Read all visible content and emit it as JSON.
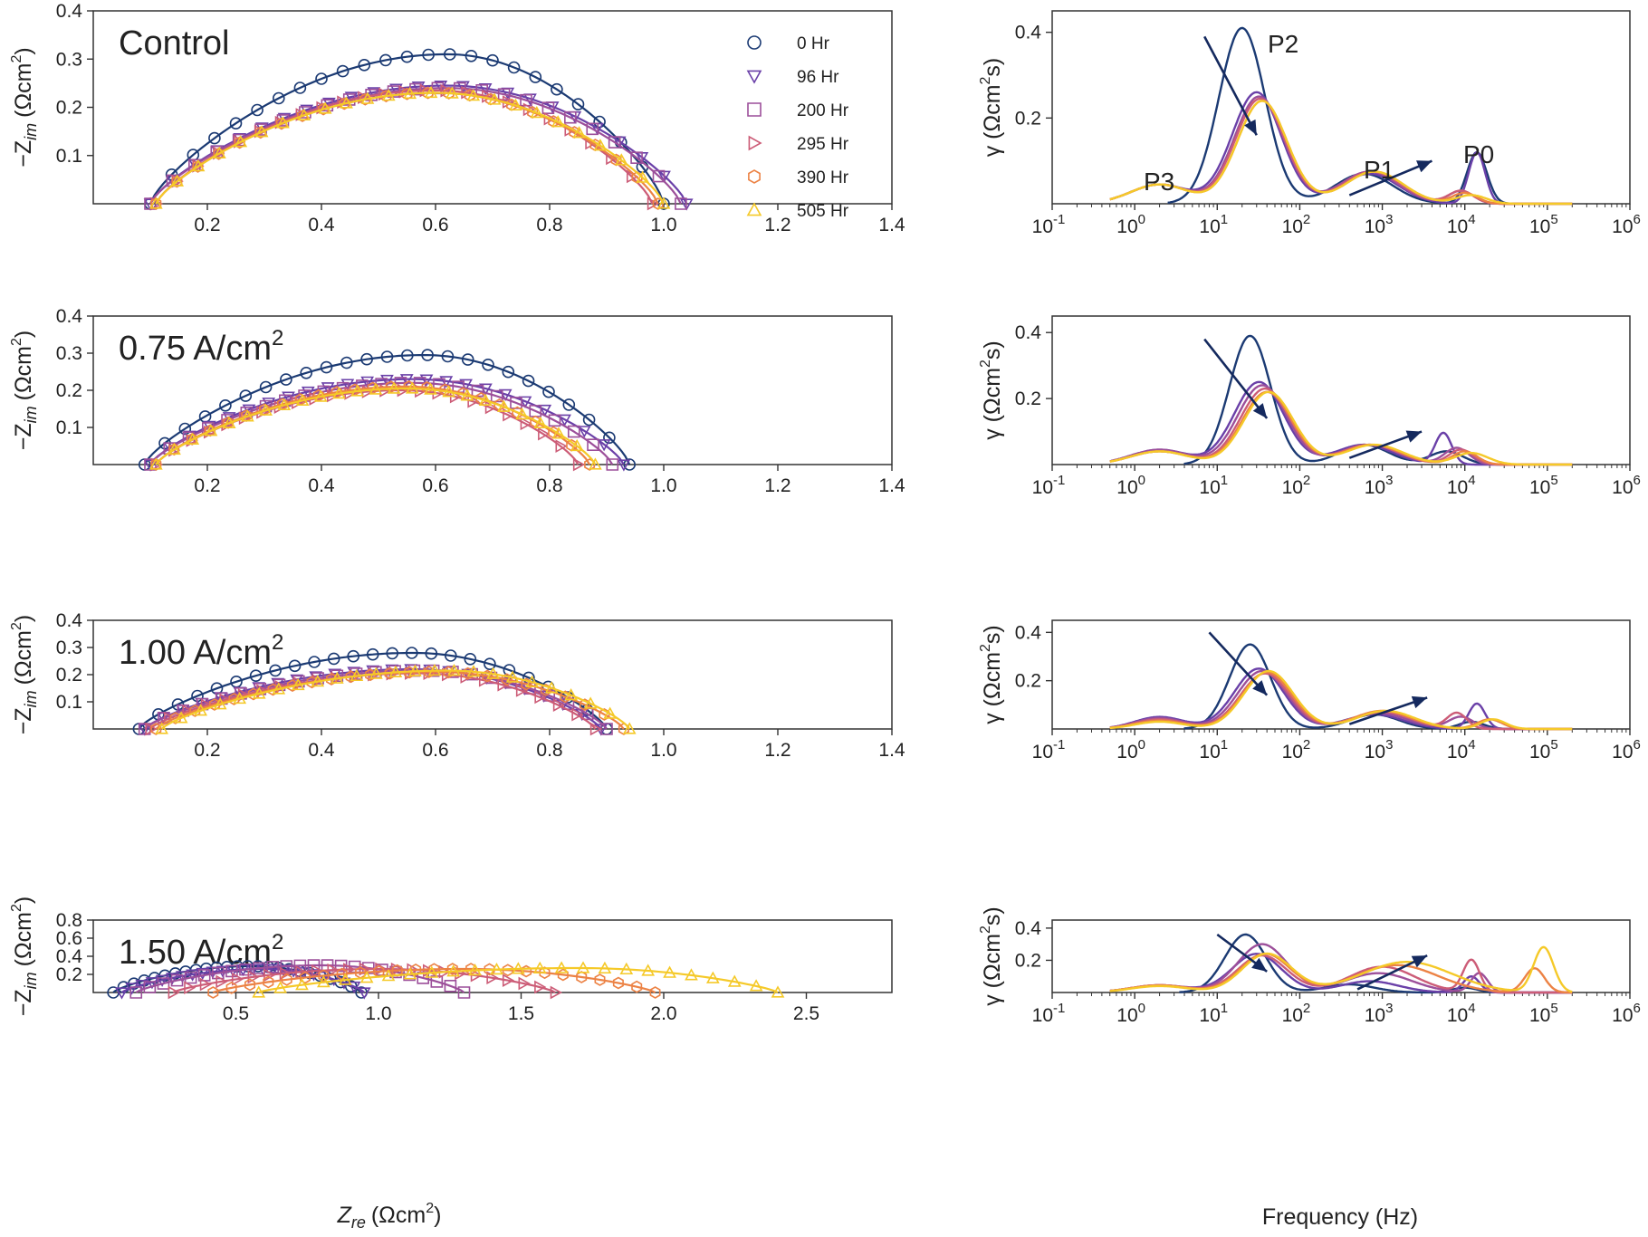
{
  "figure": {
    "legend": {
      "placement": "top-right of top-left panel",
      "entries": [
        {
          "label": "0 Hr",
          "marker": "circle",
          "color": "#1b3a73"
        },
        {
          "label": "96 Hr",
          "marker": "triangle-down",
          "color": "#6a40a8"
        },
        {
          "label": "200 Hr",
          "marker": "square",
          "color": "#9c4f9a"
        },
        {
          "label": "295 Hr",
          "marker": "triangle-right",
          "color": "#cc5c77"
        },
        {
          "label": "390 Hr",
          "marker": "hexagon",
          "color": "#ec8244"
        },
        {
          "label": "505 Hr",
          "marker": "triangle-up",
          "color": "#f5c928"
        }
      ]
    },
    "nyquist_axes": {
      "ylabel_main": "−Z",
      "ylabel_sub": "im",
      "ylabel_unit": "(Ωcm",
      "ylabel_exp": "2",
      "ylabel_close": ")",
      "xlabel_main": "Z",
      "xlabel_sub": "re",
      "xlabel_unit": "(Ωcm",
      "xlabel_exp": "2",
      "xlabel_close": ")"
    },
    "drt_axes": {
      "ylabel_main": "γ (Ωcm",
      "ylabel_exp": "2",
      "ylabel_close": "s)",
      "xlabel": "Frequency (Hz)"
    },
    "peak_labels": [
      "P3",
      "P2",
      "P1",
      "P0"
    ]
  },
  "chart_data": [
    {
      "type": "scatter",
      "panel": "nyquist",
      "label": "Control",
      "xlim": [
        0,
        1.4
      ],
      "ylim": [
        0,
        0.4
      ],
      "xticks": [
        0.2,
        0.4,
        0.6,
        0.8,
        1.0,
        1.2,
        1.4
      ],
      "yticks": [
        0.1,
        0.2,
        0.3,
        0.4
      ],
      "series": [
        {
          "name": "0 Hr",
          "x0": 0.1,
          "x1": 1.0,
          "peak": 0.31,
          "peak_at": 0.62
        },
        {
          "name": "96 Hr",
          "x0": 0.1,
          "x1": 1.04,
          "peak": 0.245,
          "peak_at": 0.62
        },
        {
          "name": "200 Hr",
          "x0": 0.1,
          "x1": 1.03,
          "peak": 0.24,
          "peak_at": 0.62
        },
        {
          "name": "295 Hr",
          "x0": 0.11,
          "x1": 0.98,
          "peak": 0.235,
          "peak_at": 0.6
        },
        {
          "name": "390 Hr",
          "x0": 0.11,
          "x1": 0.99,
          "peak": 0.23,
          "peak_at": 0.6
        },
        {
          "name": "505 Hr",
          "x0": 0.11,
          "x1": 1.0,
          "peak": 0.23,
          "peak_at": 0.6
        }
      ]
    },
    {
      "type": "line",
      "panel": "drt",
      "label": "Control",
      "xscale": "log",
      "xlim": [
        0.1,
        1000000
      ],
      "ylim": [
        0,
        0.45
      ],
      "yticks": [
        0.2,
        0.4
      ],
      "arrows": [
        {
          "x1": 7,
          "y1": 0.39,
          "x2": 30,
          "y2": 0.16
        },
        {
          "x1": 400,
          "y1": 0.02,
          "x2": 4000,
          "y2": 0.1
        }
      ],
      "series": [
        {
          "name": "0 Hr",
          "peaks": [
            [
              20,
              0.41,
              0.28
            ],
            [
              600,
              0.07,
              0.35
            ],
            [
              14000,
              0.12,
              0.12
            ]
          ]
        },
        {
          "name": "96 Hr",
          "peaks": [
            [
              2,
              0.045,
              0.35
            ],
            [
              30,
              0.26,
              0.3
            ],
            [
              700,
              0.07,
              0.35
            ],
            [
              14000,
              0.12,
              0.1
            ]
          ]
        },
        {
          "name": "200 Hr",
          "peaks": [
            [
              2,
              0.045,
              0.35
            ],
            [
              32,
              0.25,
              0.3
            ],
            [
              700,
              0.075,
              0.35
            ],
            [
              9000,
              0.03,
              0.15
            ]
          ]
        },
        {
          "name": "295 Hr",
          "peaks": [
            [
              2,
              0.045,
              0.35
            ],
            [
              33,
              0.245,
              0.3
            ],
            [
              750,
              0.075,
              0.35
            ],
            [
              9000,
              0.03,
              0.15
            ]
          ]
        },
        {
          "name": "390 Hr",
          "peaks": [
            [
              2,
              0.045,
              0.35
            ],
            [
              35,
              0.24,
              0.3
            ],
            [
              800,
              0.075,
              0.35
            ],
            [
              10000,
              0.025,
              0.15
            ]
          ]
        },
        {
          "name": "505 Hr",
          "peaks": [
            [
              2,
              0.045,
              0.35
            ],
            [
              35,
              0.24,
              0.3
            ],
            [
              800,
              0.075,
              0.35
            ],
            [
              12000,
              0.02,
              0.18
            ]
          ]
        }
      ]
    },
    {
      "type": "scatter",
      "panel": "nyquist",
      "label": "0.75 A/cm",
      "label_exp": "2",
      "xlim": [
        0,
        1.4
      ],
      "ylim": [
        0,
        0.4
      ],
      "xticks": [
        0.2,
        0.4,
        0.6,
        0.8,
        1.0,
        1.2,
        1.4
      ],
      "yticks": [
        0.1,
        0.2,
        0.3,
        0.4
      ],
      "series": [
        {
          "name": "0 Hr",
          "x0": 0.09,
          "x1": 0.94,
          "peak": 0.295,
          "peak_at": 0.58
        },
        {
          "name": "96 Hr",
          "x0": 0.1,
          "x1": 0.93,
          "peak": 0.23,
          "peak_at": 0.56
        },
        {
          "name": "200 Hr",
          "x0": 0.1,
          "x1": 0.91,
          "peak": 0.22,
          "peak_at": 0.56
        },
        {
          "name": "295 Hr",
          "x0": 0.11,
          "x1": 0.85,
          "peak": 0.2,
          "peak_at": 0.54
        },
        {
          "name": "390 Hr",
          "x0": 0.11,
          "x1": 0.87,
          "peak": 0.21,
          "peak_at": 0.55
        },
        {
          "name": "505 Hr",
          "x0": 0.11,
          "x1": 0.88,
          "peak": 0.205,
          "peak_at": 0.55
        }
      ]
    },
    {
      "type": "line",
      "panel": "drt",
      "label": "0.75 A/cm2",
      "xscale": "log",
      "xlim": [
        0.1,
        1000000
      ],
      "ylim": [
        0,
        0.45
      ],
      "yticks": [
        0.2,
        0.4
      ],
      "arrows": [
        {
          "x1": 7,
          "y1": 0.38,
          "x2": 40,
          "y2": 0.14
        },
        {
          "x1": 400,
          "y1": 0.02,
          "x2": 3000,
          "y2": 0.1
        }
      ],
      "series": [
        {
          "name": "0 Hr",
          "peaks": [
            [
              25,
              0.39,
              0.25
            ],
            [
              600,
              0.06,
              0.3
            ],
            [
              6000,
              0.04,
              0.2
            ]
          ]
        },
        {
          "name": "96 Hr",
          "peaks": [
            [
              2,
              0.045,
              0.35
            ],
            [
              32,
              0.25,
              0.3
            ],
            [
              600,
              0.06,
              0.35
            ],
            [
              5500,
              0.095,
              0.1
            ]
          ]
        },
        {
          "name": "200 Hr",
          "peaks": [
            [
              2,
              0.045,
              0.35
            ],
            [
              35,
              0.24,
              0.3
            ],
            [
              700,
              0.06,
              0.35
            ],
            [
              8000,
              0.05,
              0.15
            ]
          ]
        },
        {
          "name": "295 Hr",
          "peaks": [
            [
              2,
              0.04,
              0.35
            ],
            [
              38,
              0.23,
              0.3
            ],
            [
              700,
              0.06,
              0.35
            ],
            [
              9000,
              0.045,
              0.15
            ]
          ]
        },
        {
          "name": "390 Hr",
          "peaks": [
            [
              2,
              0.04,
              0.35
            ],
            [
              40,
              0.22,
              0.3
            ],
            [
              750,
              0.06,
              0.35
            ],
            [
              10000,
              0.04,
              0.15
            ]
          ]
        },
        {
          "name": "505 Hr",
          "peaks": [
            [
              2,
              0.04,
              0.35
            ],
            [
              42,
              0.22,
              0.3
            ],
            [
              800,
              0.06,
              0.35
            ],
            [
              12000,
              0.035,
              0.2
            ]
          ]
        }
      ]
    },
    {
      "type": "scatter",
      "panel": "nyquist",
      "label": "1.00 A/cm",
      "label_exp": "2",
      "xlim": [
        0,
        1.4
      ],
      "ylim": [
        0,
        0.4
      ],
      "xticks": [
        0.2,
        0.4,
        0.6,
        0.8,
        1.0,
        1.2,
        1.4
      ],
      "yticks": [
        0.1,
        0.2,
        0.3,
        0.4
      ],
      "series": [
        {
          "name": "0 Hr",
          "x0": 0.08,
          "x1": 0.9,
          "peak": 0.28,
          "peak_at": 0.56
        },
        {
          "name": "96 Hr",
          "x0": 0.09,
          "x1": 0.89,
          "peak": 0.22,
          "peak_at": 0.56
        },
        {
          "name": "200 Hr",
          "x0": 0.09,
          "x1": 0.9,
          "peak": 0.215,
          "peak_at": 0.58
        },
        {
          "name": "295 Hr",
          "x0": 0.1,
          "x1": 0.88,
          "peak": 0.205,
          "peak_at": 0.57
        },
        {
          "name": "390 Hr",
          "x0": 0.11,
          "x1": 0.93,
          "peak": 0.21,
          "peak_at": 0.6
        },
        {
          "name": "505 Hr",
          "x0": 0.12,
          "x1": 0.94,
          "peak": 0.215,
          "peak_at": 0.62
        }
      ]
    },
    {
      "type": "line",
      "panel": "drt",
      "label": "1.00 A/cm2",
      "xscale": "log",
      "xlim": [
        0.1,
        1000000
      ],
      "ylim": [
        0,
        0.45
      ],
      "yticks": [
        0.2,
        0.4
      ],
      "arrows": [
        {
          "x1": 8,
          "y1": 0.4,
          "x2": 40,
          "y2": 0.14
        },
        {
          "x1": 400,
          "y1": 0.02,
          "x2": 3500,
          "y2": 0.13
        }
      ],
      "series": [
        {
          "name": "0 Hr",
          "peaks": [
            [
              25,
              0.35,
              0.25
            ],
            [
              800,
              0.06,
              0.3
            ],
            [
              12000,
              0.03,
              0.15
            ]
          ]
        },
        {
          "name": "96 Hr",
          "peaks": [
            [
              2,
              0.05,
              0.3
            ],
            [
              32,
              0.25,
              0.3
            ],
            [
              800,
              0.06,
              0.35
            ],
            [
              14000,
              0.105,
              0.1
            ]
          ]
        },
        {
          "name": "200 Hr",
          "peaks": [
            [
              2,
              0.045,
              0.3
            ],
            [
              35,
              0.24,
              0.3
            ],
            [
              900,
              0.065,
              0.35
            ],
            [
              9000,
              0.05,
              0.15
            ]
          ]
        },
        {
          "name": "295 Hr",
          "peaks": [
            [
              2,
              0.04,
              0.3
            ],
            [
              38,
              0.23,
              0.3
            ],
            [
              1000,
              0.07,
              0.35
            ],
            [
              8000,
              0.065,
              0.12
            ]
          ]
        },
        {
          "name": "390 Hr",
          "peaks": [
            [
              2,
              0.035,
              0.3
            ],
            [
              40,
              0.235,
              0.3
            ],
            [
              1000,
              0.075,
              0.35
            ],
            [
              20000,
              0.04,
              0.15
            ]
          ]
        },
        {
          "name": "505 Hr",
          "peaks": [
            [
              2,
              0.03,
              0.3
            ],
            [
              42,
              0.24,
              0.3
            ],
            [
              1100,
              0.075,
              0.35
            ],
            [
              22000,
              0.04,
              0.15
            ]
          ]
        }
      ]
    },
    {
      "type": "scatter",
      "panel": "nyquist",
      "label": "1.50 A/cm",
      "label_exp": "2",
      "xlim": [
        0,
        2.8
      ],
      "ylim": [
        0,
        0.8
      ],
      "xticks": [
        0.5,
        1.0,
        1.5,
        2.0,
        2.5
      ],
      "yticks": [
        0.2,
        0.4,
        0.6,
        0.8
      ],
      "series": [
        {
          "name": "0 Hr",
          "x0": 0.07,
          "x1": 0.94,
          "peak": 0.29,
          "peak_at": 0.55
        },
        {
          "name": "96 Hr",
          "x0": 0.1,
          "x1": 0.95,
          "peak": 0.26,
          "peak_at": 0.6
        },
        {
          "name": "200 Hr",
          "x0": 0.15,
          "x1": 1.3,
          "peak": 0.3,
          "peak_at": 0.8
        },
        {
          "name": "295 Hr",
          "x0": 0.28,
          "x1": 1.62,
          "peak": 0.26,
          "peak_at": 1.0
        },
        {
          "name": "390 Hr",
          "x0": 0.42,
          "x1": 1.97,
          "peak": 0.26,
          "peak_at": 1.3
        },
        {
          "name": "505 Hr",
          "x0": 0.58,
          "x1": 2.4,
          "peak": 0.27,
          "peak_at": 1.7
        }
      ]
    },
    {
      "type": "line",
      "panel": "drt",
      "label": "1.50 A/cm2",
      "xscale": "log",
      "xlim": [
        0.1,
        1000000
      ],
      "ylim": [
        0,
        0.45
      ],
      "yticks": [
        0.2,
        0.4
      ],
      "arrows": [
        {
          "x1": 10,
          "y1": 0.36,
          "x2": 40,
          "y2": 0.13
        },
        {
          "x1": 500,
          "y1": 0.02,
          "x2": 3500,
          "y2": 0.23
        }
      ],
      "series": [
        {
          "name": "0 Hr",
          "peaks": [
            [
              22,
              0.36,
              0.25
            ],
            [
              400,
              0.05,
              0.3
            ],
            [
              10000,
              0.03,
              0.15
            ]
          ]
        },
        {
          "name": "96 Hr",
          "peaks": [
            [
              2,
              0.045,
              0.35
            ],
            [
              30,
              0.24,
              0.3
            ],
            [
              700,
              0.07,
              0.35
            ],
            [
              12000,
              0.1,
              0.1
            ]
          ]
        },
        {
          "name": "200 Hr",
          "peaks": [
            [
              2,
              0.045,
              0.35
            ],
            [
              35,
              0.3,
              0.3
            ],
            [
              900,
              0.12,
              0.4
            ],
            [
              15000,
              0.12,
              0.1
            ]
          ]
        },
        {
          "name": "295 Hr",
          "peaks": [
            [
              2,
              0.045,
              0.35
            ],
            [
              35,
              0.23,
              0.3
            ],
            [
              1000,
              0.16,
              0.4
            ],
            [
              12000,
              0.2,
              0.1
            ]
          ]
        },
        {
          "name": "390 Hr",
          "peaks": [
            [
              2,
              0.045,
              0.35
            ],
            [
              38,
              0.24,
              0.3
            ],
            [
              1500,
              0.17,
              0.5
            ],
            [
              70000,
              0.15,
              0.12
            ]
          ]
        },
        {
          "name": "505 Hr",
          "peaks": [
            [
              2,
              0.04,
              0.35
            ],
            [
              40,
              0.24,
              0.3
            ],
            [
              2000,
              0.19,
              0.55
            ],
            [
              90000,
              0.28,
              0.12
            ]
          ]
        }
      ]
    }
  ]
}
